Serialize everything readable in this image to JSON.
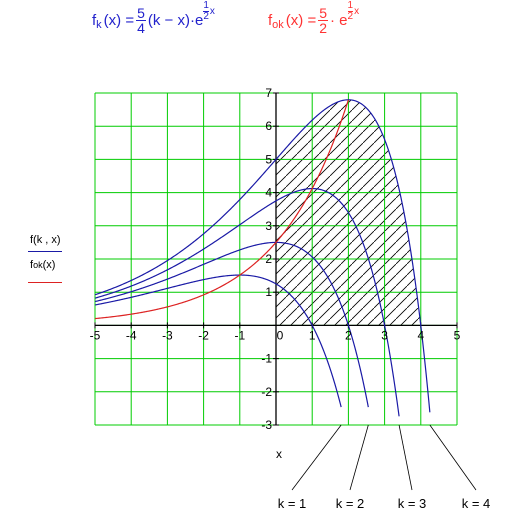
{
  "formulas": {
    "fk": {
      "lhs_f": "f",
      "lhs_sub": "k",
      "lhs_arg": "(x) =",
      "frac_num": "5",
      "frac_den": "4",
      "body": "(k − x)·e",
      "exp_num": "1",
      "exp_den": "2",
      "exp_var": "x",
      "color": "#2222cc"
    },
    "fok": {
      "lhs_f": "f",
      "lhs_sub": "ok",
      "lhs_arg": "(x) =",
      "frac_num": "5",
      "frac_den": "2",
      "body": "· e",
      "exp_num": "1",
      "exp_den": "2",
      "exp_var": "x",
      "color": "#ff3333"
    }
  },
  "legend": {
    "f_k_text": "f(k , x)",
    "f_ok_main": "f",
    "f_ok_sub": "ok",
    "f_ok_arg": "(x)"
  },
  "chart_data": {
    "type": "line",
    "xlabel": "x",
    "xlim": [
      -5,
      5
    ],
    "ylim": [
      -3,
      7
    ],
    "x_ticks": [
      "-5",
      "-4",
      "-3",
      "-2",
      "-1",
      "0",
      "1",
      "2",
      "3",
      "4",
      "5"
    ],
    "y_ticks": [
      "-3",
      "-2",
      "-1",
      "0",
      "1",
      "2",
      "3",
      "4",
      "5",
      "6",
      "7"
    ],
    "grid": true,
    "grid_color": "#00cc00",
    "k_curve_color": "#1a1aa6",
    "ok_curve_color": "#dd2222",
    "hatch": "region between the f_k curves and y = 0 to the right of x = 0",
    "series": [
      {
        "name": "f(k , x), k = 1",
        "k": 1,
        "x_range": [
          -5,
          1.8
        ],
        "color": "#1a1aa6"
      },
      {
        "name": "f(k , x), k = 2",
        "k": 2,
        "x_range": [
          -5,
          2.55
        ],
        "color": "#1a1aa6"
      },
      {
        "name": "f(k , x), k = 3",
        "k": 3,
        "x_range": [
          -5,
          3.4
        ],
        "color": "#1a1aa6"
      },
      {
        "name": "f(k , x), k = 4",
        "k": 4,
        "x_range": [
          -5,
          4.25
        ],
        "color": "#1a1aa6"
      },
      {
        "name": "fok(x)",
        "x_range": [
          -5,
          2
        ],
        "color": "#dd2222"
      }
    ],
    "annotations": [
      {
        "text": "k = 1",
        "k": 1
      },
      {
        "text": "k = 2",
        "k": 2
      },
      {
        "text": "k = 3",
        "k": 3
      },
      {
        "text": "k = 4",
        "k": 4
      }
    ]
  }
}
